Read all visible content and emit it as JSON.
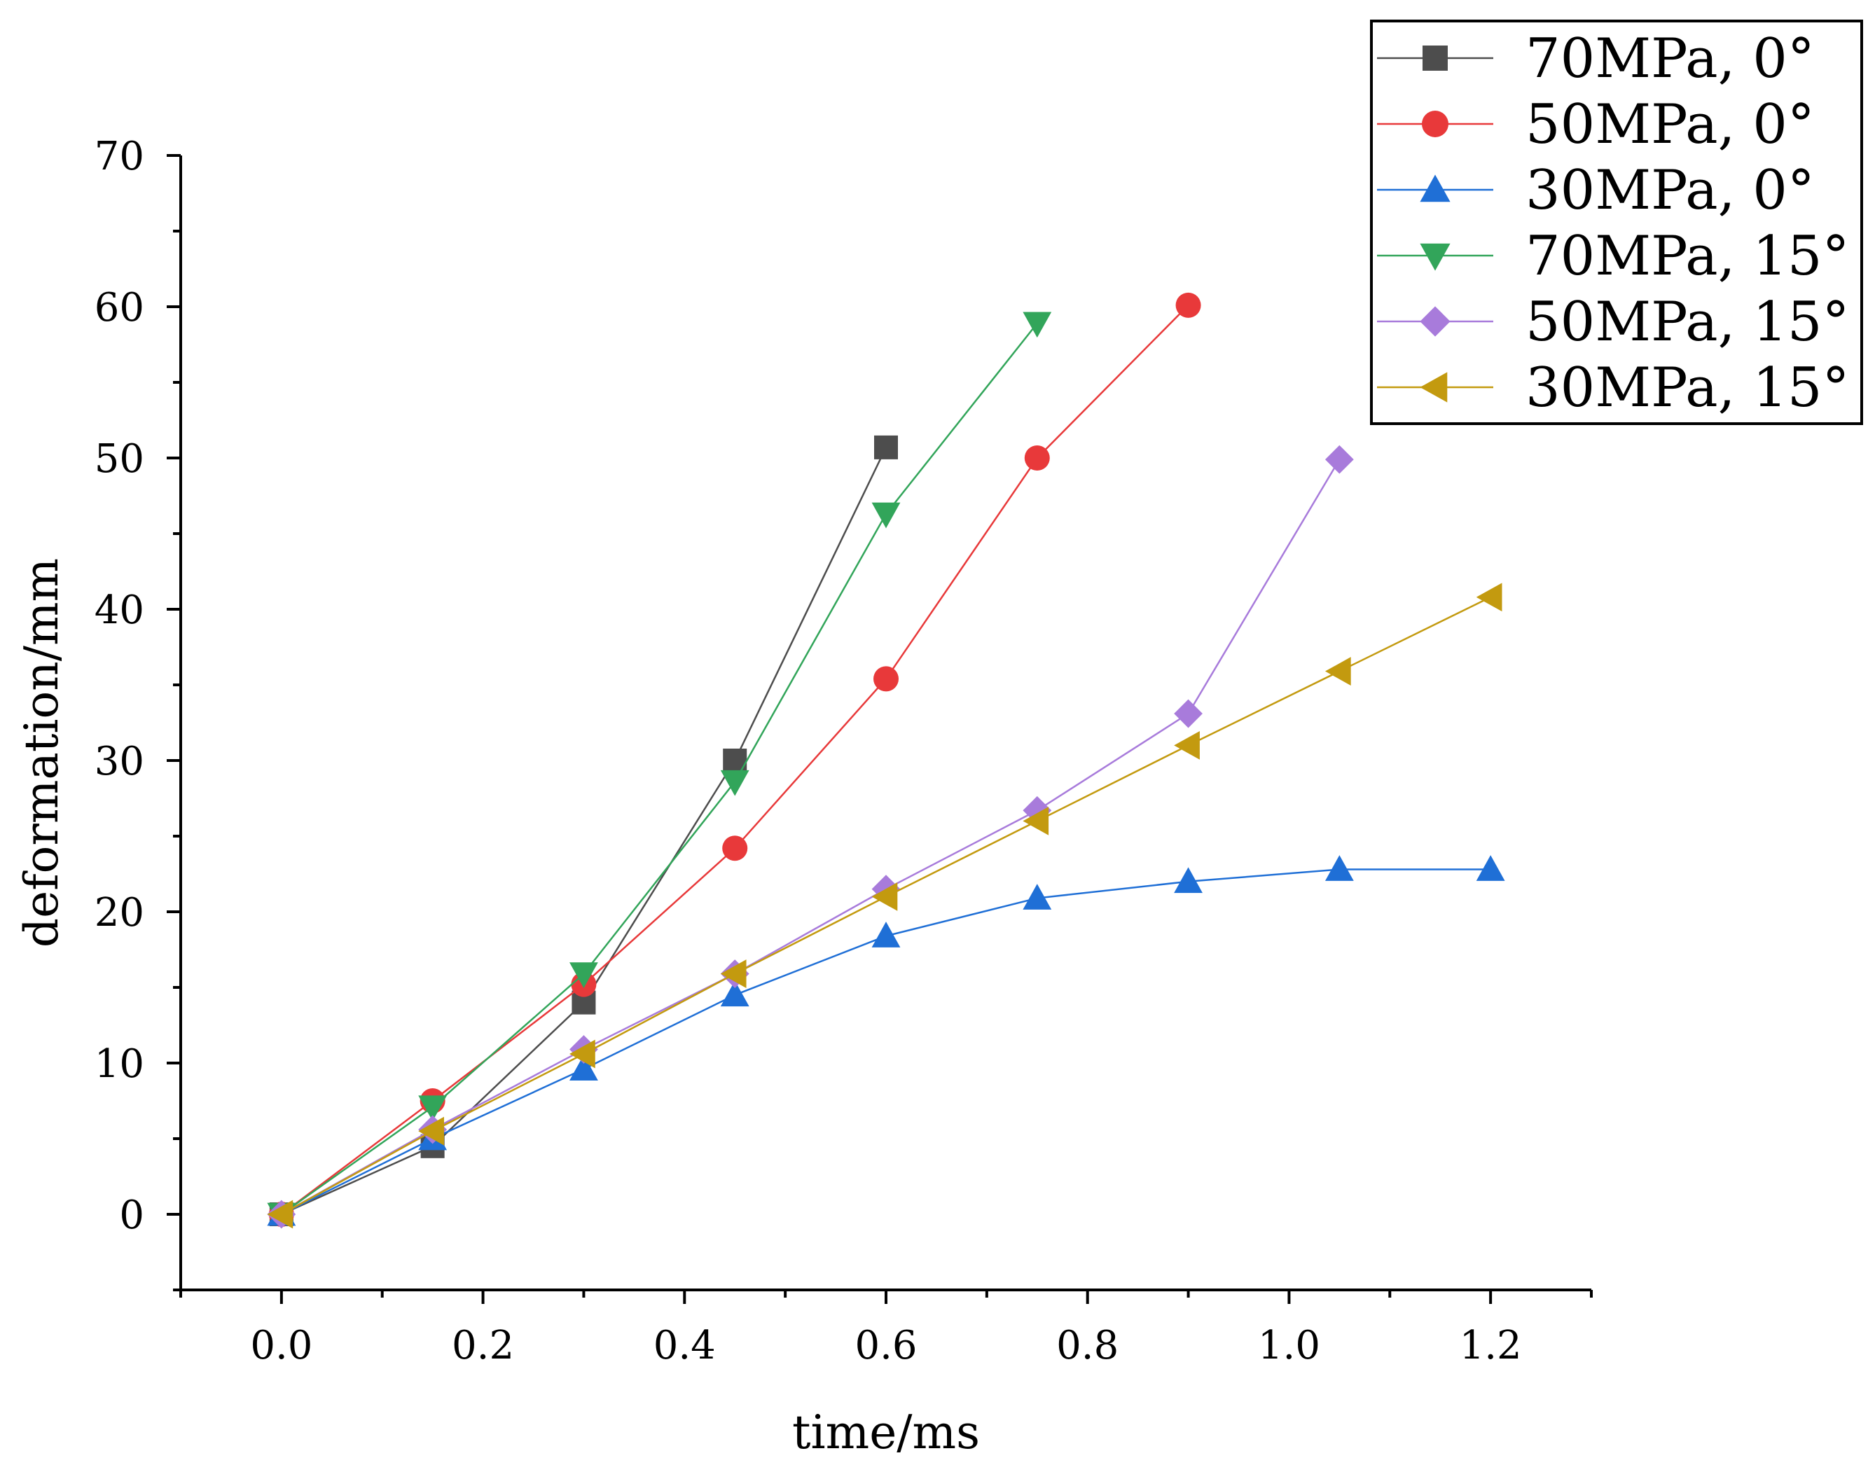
{
  "chart_data": {
    "type": "line",
    "title": "",
    "xlabel": "time/ms",
    "ylabel": "deformation/mm",
    "xlim": [
      -0.1,
      1.3
    ],
    "ylim": [
      -5,
      70
    ],
    "xticks": [
      0.0,
      0.2,
      0.4,
      0.6,
      0.8,
      1.0,
      1.2
    ],
    "xtick_labels": [
      "0.0",
      "0.2",
      "0.4",
      "0.6",
      "0.8",
      "1.0",
      "1.2"
    ],
    "yticks": [
      0,
      10,
      20,
      30,
      40,
      50,
      60,
      70
    ],
    "ytick_labels": [
      "0",
      "10",
      "20",
      "30",
      "40",
      "50",
      "60",
      "70"
    ],
    "grid": false,
    "legend_position": "top-right",
    "series": [
      {
        "name": "70MPa, 0°",
        "color": "#4d4d4d",
        "marker": "square",
        "x": [
          0,
          0.15,
          0.3,
          0.45,
          0.6
        ],
        "y": [
          0,
          4.5,
          14,
          30,
          50.7
        ]
      },
      {
        "name": "50MPa, 0°",
        "color": "#e8393a",
        "marker": "circle",
        "x": [
          0,
          0.15,
          0.3,
          0.45,
          0.6,
          0.75,
          0.9
        ],
        "y": [
          0,
          7.5,
          15.2,
          24.2,
          35.4,
          50,
          60.1
        ]
      },
      {
        "name": "30MPa, 0°",
        "color": "#1f6fd6",
        "marker": "triangle-up",
        "x": [
          0,
          0.15,
          0.3,
          0.45,
          0.6,
          0.75,
          0.9,
          1.05,
          1.2
        ],
        "y": [
          0,
          5,
          9.6,
          14.5,
          18.4,
          20.9,
          22,
          22.8,
          22.8
        ]
      },
      {
        "name": "70MPa, 15°",
        "color": "#32a55a",
        "marker": "triangle-down",
        "x": [
          0,
          0.15,
          0.3,
          0.45,
          0.6,
          0.75
        ],
        "y": [
          0,
          7.1,
          15.9,
          28.6,
          46.3,
          58.9
        ]
      },
      {
        "name": "50MPa, 15°",
        "color": "#a87bdb",
        "marker": "diamond",
        "x": [
          0,
          0.15,
          0.3,
          0.45,
          0.6,
          0.75,
          0.9,
          1.05
        ],
        "y": [
          0,
          5.6,
          10.9,
          15.9,
          21.5,
          26.7,
          33.1,
          49.9
        ]
      },
      {
        "name": "30MPa, 15°",
        "color": "#c39a0f",
        "marker": "triangle-left",
        "x": [
          0,
          0.15,
          0.3,
          0.45,
          0.6,
          0.75,
          0.9,
          1.05,
          1.2
        ],
        "y": [
          0,
          5.5,
          10.6,
          15.9,
          21,
          26,
          31,
          35.9,
          40.8
        ]
      }
    ]
  }
}
